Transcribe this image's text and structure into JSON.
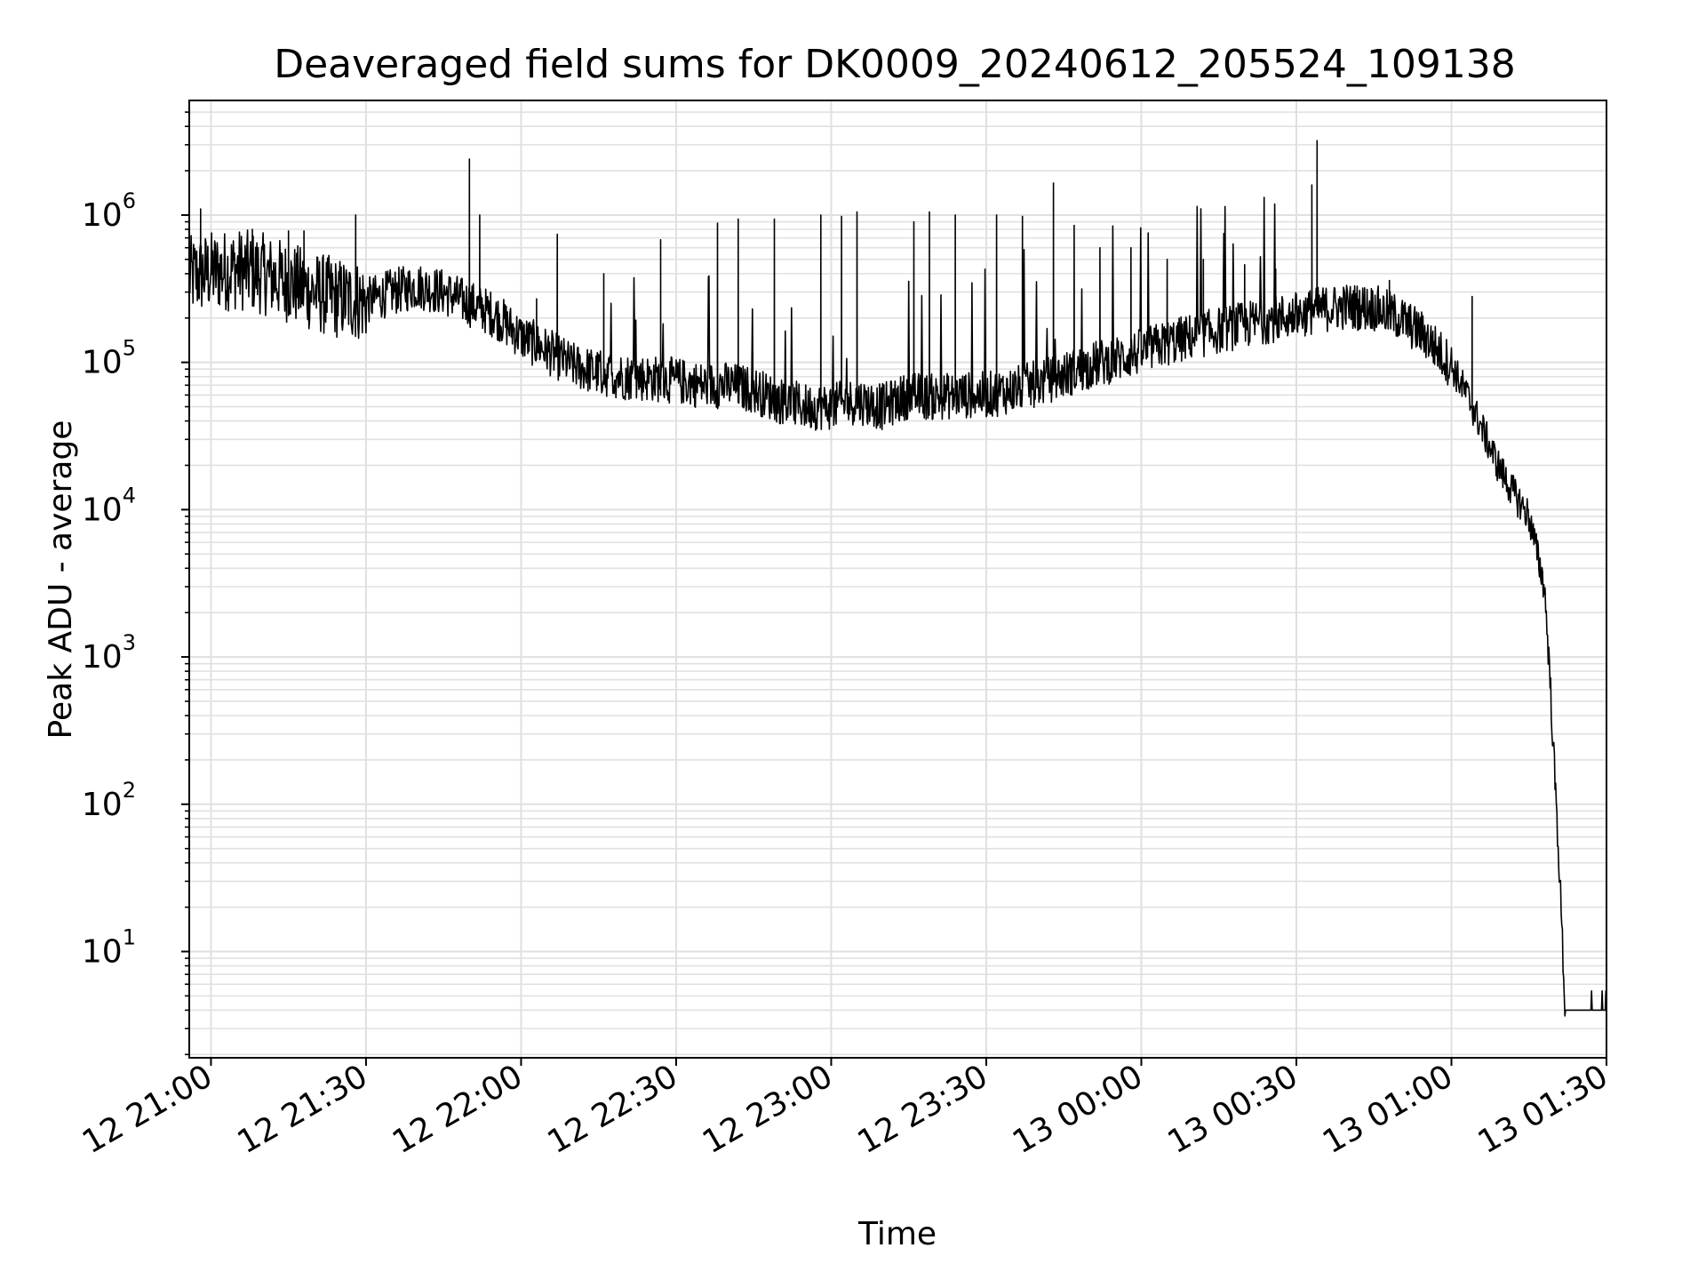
{
  "chart_data": {
    "type": "line",
    "title": "Deaveraged field sums for DK0009_20240612_205524_109138",
    "xlabel": "Time",
    "ylabel": "Peak ADU - average",
    "yscale": "log",
    "ylim": [
      1.9,
      6000000
    ],
    "xlim": [
      "12 20:55:48",
      "13 01:30:00"
    ],
    "x_ticks": [
      "12 21:00",
      "12 21:30",
      "12 22:00",
      "12 22:30",
      "12 23:00",
      "12 23:30",
      "13 00:00",
      "13 00:30",
      "13 01:00",
      "13 01:30"
    ],
    "y_ticks": [
      {
        "base": "10",
        "exp": "1",
        "value": 10
      },
      {
        "base": "10",
        "exp": "2",
        "value": 100
      },
      {
        "base": "10",
        "exp": "3",
        "value": 1000
      },
      {
        "base": "10",
        "exp": "4",
        "value": 10000
      },
      {
        "base": "10",
        "exp": "5",
        "value": 100000
      },
      {
        "base": "10",
        "exp": "6",
        "value": 1000000
      }
    ],
    "grid": true,
    "line_color": "#000000",
    "grid_color": "#e0e0e0",
    "series": [
      {
        "x": [
          "12 20:55:48",
          "12 21:00",
          "12 21:05",
          "12 21:10",
          "12 21:15",
          "12 21:20",
          "12 21:25",
          "12 21:30",
          "12 21:35",
          "12 21:40",
          "12 21:45",
          "12 21:50",
          "12 21:55",
          "12 22:00",
          "12 22:05",
          "12 22:10",
          "12 22:15",
          "12 22:20",
          "12 22:25",
          "12 22:30",
          "12 22:35",
          "12 22:40",
          "12 22:45",
          "12 22:50",
          "12 22:55",
          "12 23:00",
          "12 23:05",
          "12 23:10",
          "12 23:15",
          "12 23:20",
          "12 23:25",
          "12 23:30",
          "12 23:35",
          "12 23:40",
          "12 23:45",
          "12 23:50",
          "12 23:55",
          "13 00:00",
          "13 00:05",
          "13 00:10",
          "13 00:15",
          "13 00:20",
          "13 00:25",
          "13 00:30",
          "13 00:35",
          "13 00:40",
          "13 00:45",
          "13 00:50",
          "13 00:55",
          "13 01:00",
          "13 01:03",
          "13 01:06",
          "13 01:09",
          "13 01:12",
          "13 01:15",
          "13 01:18",
          "13 01:19",
          "13 01:20",
          "13 01:21",
          "13 01:22",
          "13 01:30"
        ],
        "y": [
          380000,
          410000,
          430000,
          400000,
          350000,
          300000,
          270000,
          260000,
          300000,
          330000,
          300000,
          250000,
          210000,
          150000,
          120000,
          95000,
          85000,
          80000,
          78000,
          75000,
          70000,
          70000,
          65000,
          55000,
          50000,
          50000,
          55000,
          50000,
          60000,
          58000,
          60000,
          60000,
          65000,
          72000,
          82000,
          95000,
          105000,
          118000,
          135000,
          150000,
          165000,
          180000,
          195000,
          210000,
          230000,
          240000,
          235000,
          200000,
          150000,
          95000,
          60000,
          35000,
          20000,
          13000,
          9000,
          3000,
          800,
          150,
          30,
          4,
          4
        ]
      }
    ],
    "spikes": [
      {
        "x": "12 20:58",
        "y": 1100000
      },
      {
        "x": "12 21:08",
        "y": 800000
      },
      {
        "x": "12 21:15",
        "y": 780000
      },
      {
        "x": "12 21:18",
        "y": 780000
      },
      {
        "x": "12 21:28",
        "y": 1000000
      },
      {
        "x": "12 21:50",
        "y": 2400000
      },
      {
        "x": "12 21:52",
        "y": 1000000
      },
      {
        "x": "12 22:03",
        "y": 270000
      },
      {
        "x": "12 22:07",
        "y": 740000
      },
      {
        "x": "12 22:16",
        "y": 400000
      },
      {
        "x": "12 22:27",
        "y": 680000
      },
      {
        "x": "12 22:38",
        "y": 880000
      },
      {
        "x": "12 22:42",
        "y": 940000
      },
      {
        "x": "12 22:49",
        "y": 940000
      },
      {
        "x": "12 22:58",
        "y": 1000000
      },
      {
        "x": "12 23:02",
        "y": 980000
      },
      {
        "x": "12 23:05",
        "y": 1050000
      },
      {
        "x": "12 23:16",
        "y": 900000
      },
      {
        "x": "12 23:19",
        "y": 1050000
      },
      {
        "x": "12 23:24",
        "y": 1000000
      },
      {
        "x": "12 23:32",
        "y": 1000000
      },
      {
        "x": "12 23:37",
        "y": 980000
      },
      {
        "x": "12 23:43",
        "y": 1650000
      },
      {
        "x": "12 23:47",
        "y": 850000
      },
      {
        "x": "12 23:52",
        "y": 600000
      },
      {
        "x": "12 23:58",
        "y": 600000
      },
      {
        "x": "13 00:05",
        "y": 500000
      },
      {
        "x": "13 00:12",
        "y": 500000
      },
      {
        "x": "13 00:20",
        "y": 460000
      },
      {
        "x": "13 00:26",
        "y": 430000
      },
      {
        "x": "13 00:33",
        "y": 1600000
      },
      {
        "x": "13 00:34",
        "y": 3200000
      },
      {
        "x": "13 00:48",
        "y": 360000
      },
      {
        "x": "13 01:04",
        "y": 280000
      }
    ]
  }
}
